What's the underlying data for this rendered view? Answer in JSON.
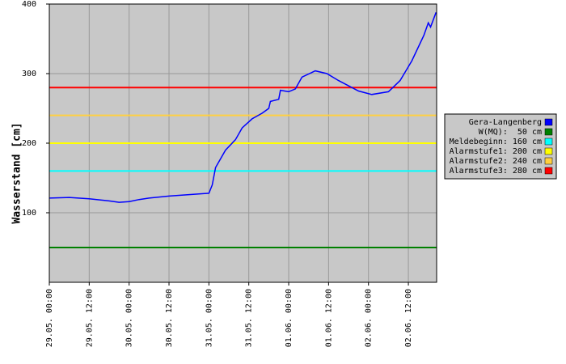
{
  "chart_data": {
    "type": "line",
    "y_label": "Wasserstand [cm]",
    "ylim": [
      0,
      400
    ],
    "yticks": [
      100,
      200,
      300,
      400
    ],
    "xlim": [
      "29.05. 00:00",
      "02.06. 20:30"
    ],
    "xticks": [
      "29.05. 00:00",
      "29.05. 12:00",
      "30.05. 00:00",
      "30.05. 12:00",
      "31.05. 00:00",
      "31.05. 12:00",
      "01.06. 00:00",
      "01.06. 12:00",
      "02.06. 00:00",
      "02.06. 12:00"
    ],
    "grid": true,
    "background": "#c8c8c8",
    "legend": "right",
    "series": [
      {
        "name": "Gera-Langenberg",
        "color": "#0000ff",
        "x": [
          "29.05. 00:00",
          "29.05. 06:00",
          "29.05. 12:00",
          "29.05. 18:00",
          "29.05. 21:00",
          "30.05. 00:00",
          "30.05. 03:00",
          "30.05. 06:00",
          "30.05. 12:00",
          "30.05. 18:00",
          "31.05. 00:00",
          "31.05. 01:00",
          "31.05. 02:00",
          "31.05. 05:00",
          "31.05. 08:00",
          "31.05. 10:00",
          "31.05. 13:00",
          "31.05. 16:00",
          "31.05. 18:00",
          "31.05. 18:30",
          "31.05. 21:00",
          "31.05. 21:30",
          "01.06. 00:00",
          "01.06. 02:00",
          "01.06. 04:00",
          "01.06. 08:00",
          "01.06. 11:30",
          "01.06. 15:00",
          "01.06. 21:00",
          "02.06. 01:00",
          "02.06. 06:00",
          "02.06. 09:30",
          "02.06. 13:00",
          "02.06. 16:40",
          "02.06. 18:00",
          "02.06. 18:40",
          "02.06. 20:20"
        ],
        "values": [
          121,
          122,
          120,
          117,
          115,
          116,
          119,
          121,
          124,
          126,
          128,
          140,
          165,
          190,
          205,
          222,
          235,
          243,
          250,
          260,
          263,
          276,
          274,
          278,
          295,
          304,
          300,
          290,
          275,
          270,
          274,
          290,
          318,
          355,
          373,
          367,
          388
        ]
      }
    ],
    "thresholds": [
      {
        "name": "W(MQ):  50 cm",
        "value": 50,
        "color": "#008000"
      },
      {
        "name": "Meldebeginn: 160 cm",
        "value": 160,
        "color": "#00ffff"
      },
      {
        "name": "Alarmstufe1: 200 cm",
        "value": 200,
        "color": "#ffff00"
      },
      {
        "name": "Alarmstufe2: 240 cm",
        "value": 240,
        "color": "#ffd040"
      },
      {
        "name": "Alarmstufe3: 280 cm",
        "value": 280,
        "color": "#ff0000"
      }
    ]
  }
}
